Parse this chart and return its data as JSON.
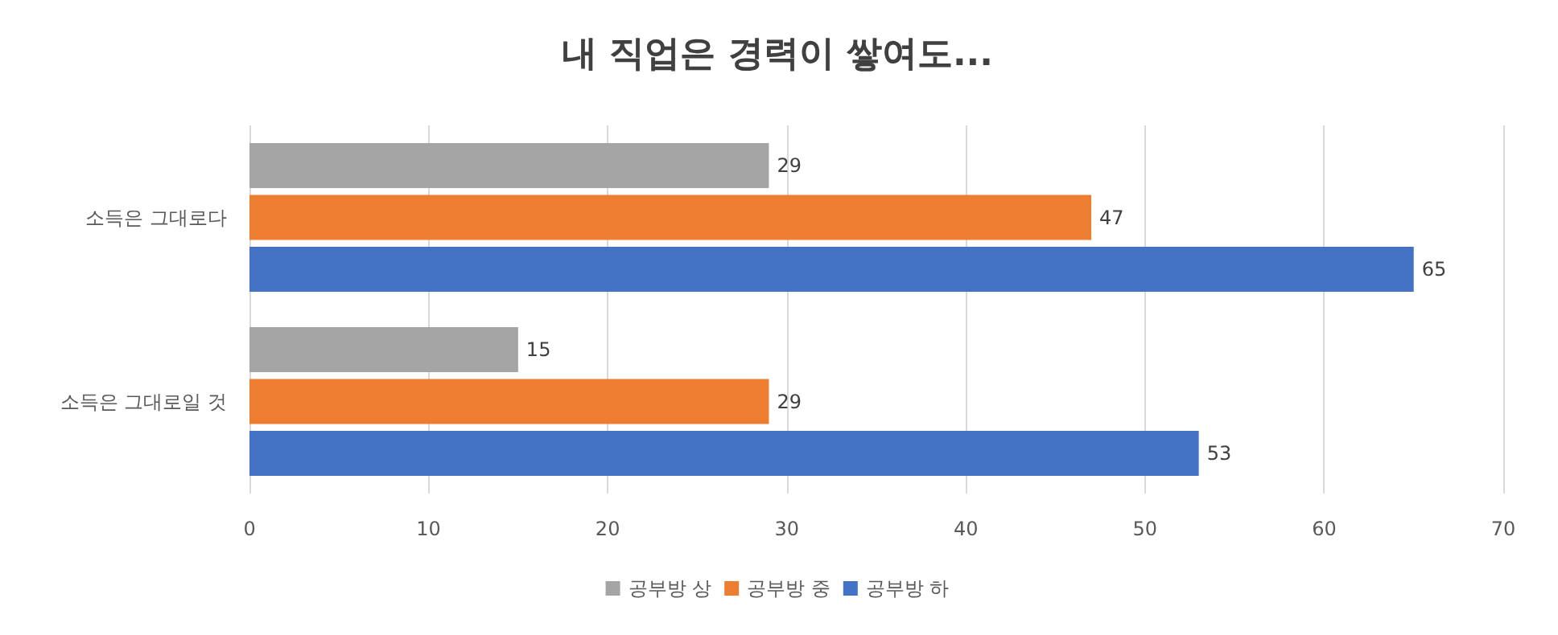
{
  "chart_data": {
    "type": "bar",
    "orientation": "horizontal",
    "title": "내 직업은 경력이 쌓여도...",
    "categories": [
      "소득은 그대로다",
      "소득은 그대로일 것"
    ],
    "series": [
      {
        "name": "공부방 상",
        "color": "#a5a5a5",
        "values": [
          29,
          15
        ]
      },
      {
        "name": "공부방 중",
        "color": "#ed7d31",
        "values": [
          47,
          29
        ]
      },
      {
        "name": "공부방 하",
        "color": "#4472c4",
        "values": [
          65,
          53
        ]
      }
    ],
    "xlim": [
      0,
      70
    ],
    "xticks": [
      0,
      10,
      20,
      30,
      40,
      50,
      60,
      70
    ],
    "grid": "x",
    "legend": "bottom",
    "data_labels": true
  }
}
